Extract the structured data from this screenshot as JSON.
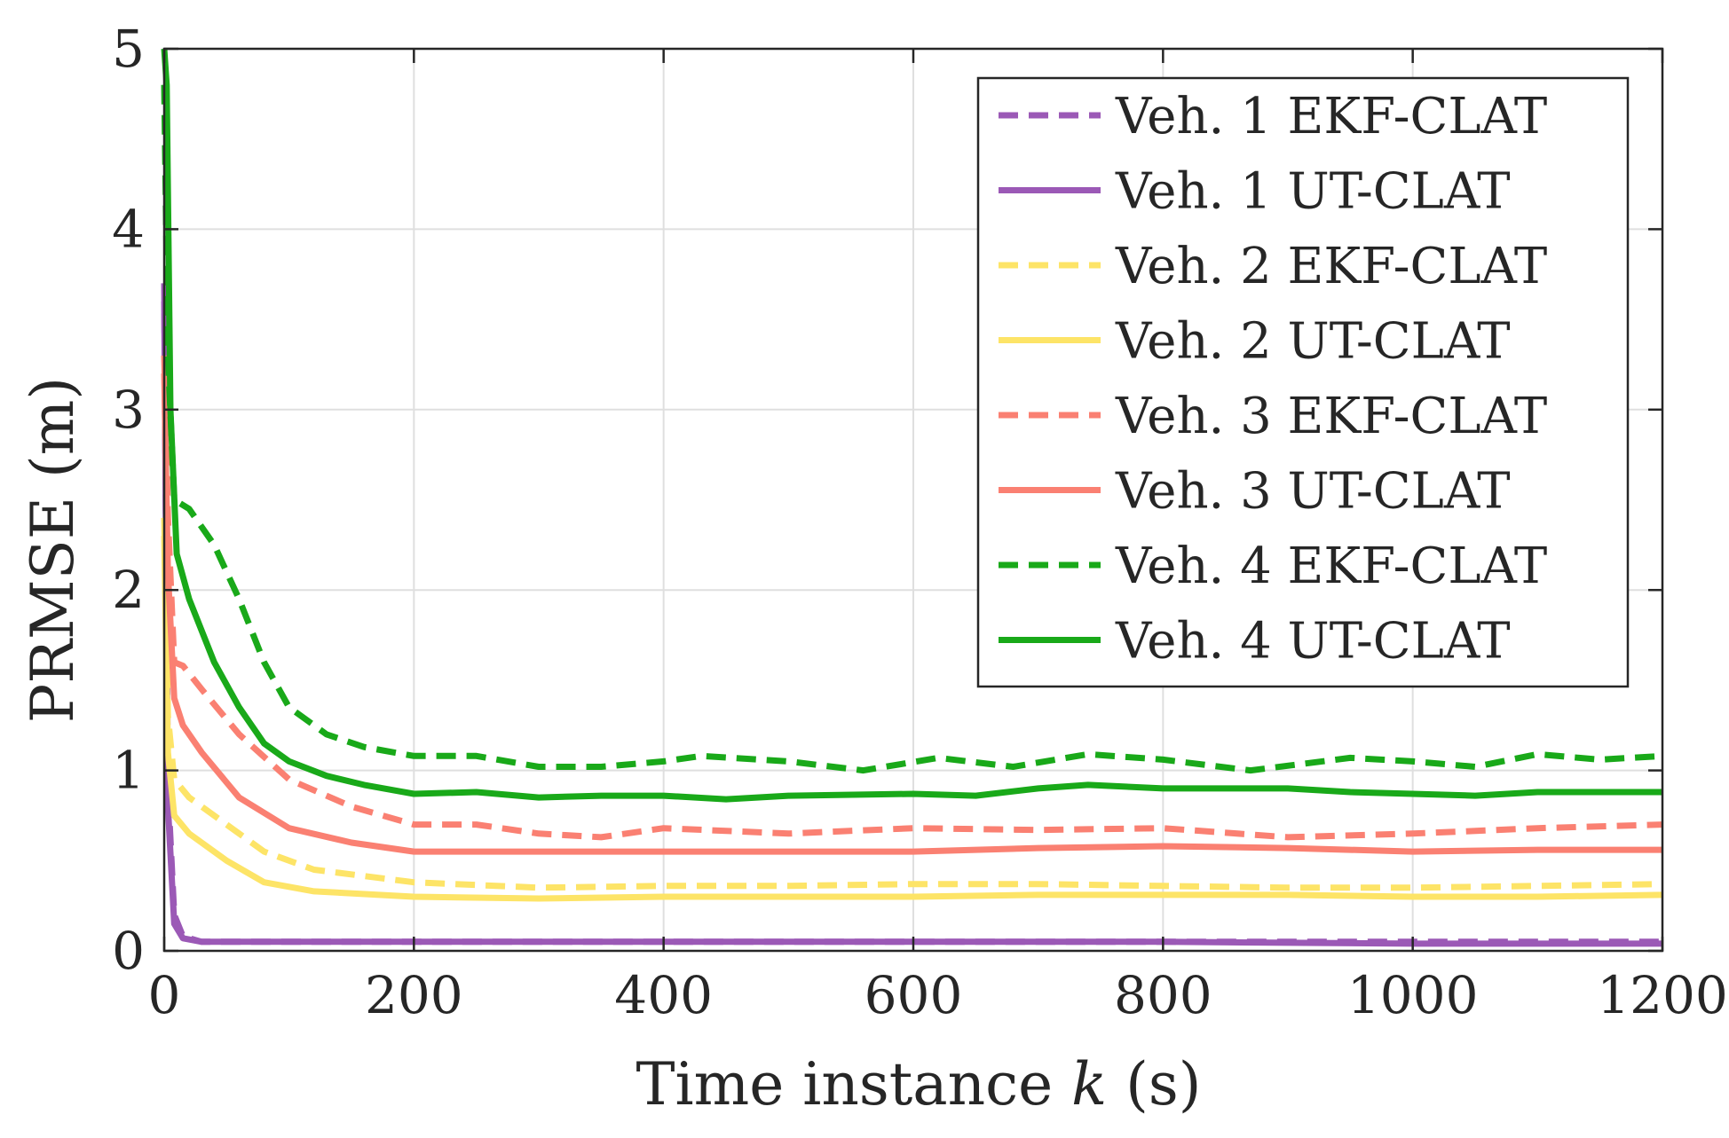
{
  "chart_data": {
    "type": "line",
    "xlabel_prefix": "Time instance ",
    "xlabel_var": "k",
    "xlabel_suffix": " (s)",
    "ylabel": "PRMSE  (m)",
    "xlim": [
      0,
      1200
    ],
    "ylim": [
      0,
      5
    ],
    "xticks": [
      0,
      200,
      400,
      600,
      800,
      1000,
      1200
    ],
    "yticks": [
      0,
      1,
      2,
      3,
      4,
      5
    ],
    "grid": true,
    "legend_position": "top-right",
    "series": [
      {
        "name": "Veh. 1 EKF-CLAT",
        "color": "#9b59b6",
        "dash": "dashed",
        "x": [
          0,
          3,
          8,
          15,
          30,
          60,
          100,
          200,
          400,
          600,
          800,
          1000,
          1200
        ],
        "y": [
          3.7,
          0.9,
          0.2,
          0.08,
          0.05,
          0.05,
          0.05,
          0.05,
          0.05,
          0.05,
          0.05,
          0.05,
          0.05
        ]
      },
      {
        "name": "Veh. 1 UT-CLAT",
        "color": "#9b59b6",
        "dash": "solid",
        "x": [
          0,
          3,
          8,
          15,
          30,
          60,
          100,
          200,
          400,
          600,
          800,
          1000,
          1200
        ],
        "y": [
          3.6,
          0.8,
          0.15,
          0.07,
          0.05,
          0.05,
          0.05,
          0.05,
          0.05,
          0.05,
          0.05,
          0.04,
          0.04
        ]
      },
      {
        "name": "Veh. 2 EKF-CLAT",
        "color": "#fde467",
        "dash": "dashed",
        "x": [
          0,
          3,
          8,
          20,
          50,
          80,
          120,
          200,
          300,
          400,
          500,
          600,
          700,
          800,
          900,
          1000,
          1100,
          1200
        ],
        "y": [
          2.4,
          1.3,
          0.95,
          0.85,
          0.7,
          0.55,
          0.45,
          0.38,
          0.35,
          0.36,
          0.36,
          0.37,
          0.37,
          0.36,
          0.35,
          0.35,
          0.36,
          0.37
        ]
      },
      {
        "name": "Veh. 2 UT-CLAT",
        "color": "#fde467",
        "dash": "solid",
        "x": [
          0,
          3,
          8,
          20,
          50,
          80,
          120,
          200,
          300,
          400,
          500,
          600,
          700,
          800,
          900,
          1000,
          1100,
          1200
        ],
        "y": [
          2.3,
          1.1,
          0.75,
          0.65,
          0.5,
          0.38,
          0.33,
          0.3,
          0.29,
          0.3,
          0.3,
          0.3,
          0.31,
          0.31,
          0.31,
          0.3,
          0.3,
          0.31
        ]
      },
      {
        "name": "Veh. 3 EKF-CLAT",
        "color": "#fa8072",
        "dash": "dashed",
        "x": [
          0,
          3,
          8,
          15,
          30,
          60,
          100,
          150,
          200,
          250,
          300,
          350,
          400,
          500,
          600,
          700,
          800,
          900,
          1000,
          1100,
          1200
        ],
        "y": [
          3.3,
          2.4,
          1.6,
          1.58,
          1.45,
          1.2,
          0.95,
          0.8,
          0.7,
          0.7,
          0.65,
          0.63,
          0.68,
          0.65,
          0.68,
          0.67,
          0.68,
          0.63,
          0.65,
          0.68,
          0.7
        ]
      },
      {
        "name": "Veh. 3 UT-CLAT",
        "color": "#fa8072",
        "dash": "solid",
        "x": [
          0,
          3,
          8,
          15,
          30,
          60,
          100,
          150,
          200,
          300,
          400,
          500,
          600,
          700,
          800,
          900,
          1000,
          1100,
          1200
        ],
        "y": [
          3.2,
          2.1,
          1.4,
          1.25,
          1.1,
          0.85,
          0.68,
          0.6,
          0.55,
          0.55,
          0.55,
          0.55,
          0.55,
          0.57,
          0.58,
          0.57,
          0.55,
          0.56,
          0.56
        ]
      },
      {
        "name": "Veh. 4 EKF-CLAT",
        "color": "#19a919",
        "dash": "dashed",
        "x": [
          0,
          3,
          8,
          20,
          40,
          60,
          80,
          100,
          130,
          160,
          200,
          250,
          300,
          350,
          400,
          430,
          500,
          560,
          620,
          680,
          740,
          800,
          870,
          950,
          1000,
          1050,
          1100,
          1150,
          1200
        ],
        "y": [
          4.8,
          3.3,
          2.5,
          2.45,
          2.25,
          1.95,
          1.6,
          1.35,
          1.2,
          1.13,
          1.08,
          1.08,
          1.02,
          1.02,
          1.05,
          1.08,
          1.05,
          1.0,
          1.07,
          1.02,
          1.09,
          1.06,
          1.0,
          1.07,
          1.05,
          1.02,
          1.09,
          1.06,
          1.08
        ]
      },
      {
        "name": "Veh. 4 UT-CLAT",
        "color": "#19a919",
        "dash": "solid",
        "x": [
          0,
          2,
          5,
          10,
          20,
          40,
          60,
          80,
          100,
          130,
          160,
          200,
          250,
          300,
          350,
          400,
          450,
          500,
          600,
          650,
          700,
          740,
          800,
          900,
          950,
          1000,
          1050,
          1100,
          1150,
          1200
        ],
        "y": [
          5.0,
          4.8,
          3.0,
          2.2,
          1.95,
          1.6,
          1.35,
          1.15,
          1.05,
          0.97,
          0.92,
          0.87,
          0.88,
          0.85,
          0.86,
          0.86,
          0.84,
          0.86,
          0.87,
          0.86,
          0.9,
          0.92,
          0.9,
          0.9,
          0.88,
          0.87,
          0.86,
          0.88,
          0.88,
          0.88
        ]
      }
    ]
  }
}
